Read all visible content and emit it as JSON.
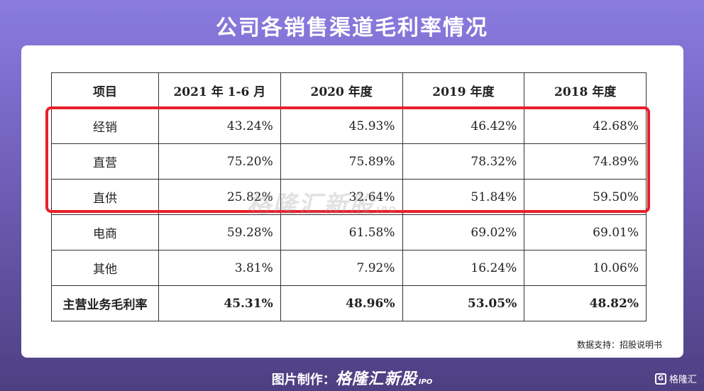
{
  "title": "公司各销售渠道毛利率情况",
  "table": {
    "headers": [
      "项目",
      "2021 年 1-6 月",
      "2020 年度",
      "2019 年度",
      "2018 年度"
    ],
    "rows": [
      [
        "经销",
        "43.24%",
        "45.93%",
        "46.42%",
        "42.68%"
      ],
      [
        "直营",
        "75.20%",
        "75.89%",
        "78.32%",
        "74.89%"
      ],
      [
        "直供",
        "25.82%",
        "32.64%",
        "51.84%",
        "59.50%"
      ],
      [
        "电商",
        "59.28%",
        "61.58%",
        "69.02%",
        "69.01%"
      ],
      [
        "其他",
        "3.81%",
        "7.92%",
        "16.24%",
        "10.06%"
      ],
      [
        "主营业务毛利率",
        "45.31%",
        "48.96%",
        "53.05%",
        "48.82%"
      ]
    ]
  },
  "highlight_color": "#e8202a",
  "watermark": {
    "brand": "格隆汇新股",
    "suffix": "IPO"
  },
  "source": "数据支持：招股说明书",
  "footer": {
    "prefix": "图片制作：",
    "brand": "格隆汇新股",
    "suffix": "IPO"
  },
  "corner": {
    "logo": "G",
    "label": "格隆汇"
  }
}
